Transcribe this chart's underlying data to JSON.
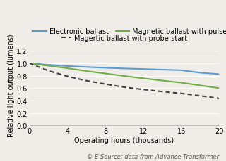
{
  "title": "",
  "xlabel": "Operating hours (thousands)",
  "ylabel": "Relative light output (lumens)",
  "copyright": "© E Source; data from Advance Transformer",
  "xlim": [
    0,
    20
  ],
  "ylim": [
    0.0,
    1.3
  ],
  "xticks": [
    0,
    4,
    8,
    12,
    16,
    20
  ],
  "yticks": [
    0.0,
    0.2,
    0.4,
    0.6,
    0.8,
    1.0,
    1.2
  ],
  "lines": [
    {
      "label": "Electronic ballast",
      "color": "#5b9bd5",
      "style": "solid",
      "x": [
        0,
        2,
        4,
        6,
        8,
        10,
        12,
        14,
        16,
        18,
        20
      ],
      "y": [
        1.0,
        0.975,
        0.955,
        0.94,
        0.927,
        0.916,
        0.907,
        0.897,
        0.888,
        0.848,
        0.825
      ]
    },
    {
      "label": "Magnetic ballast with pulse-start",
      "color": "#70ad47",
      "style": "solid",
      "x": [
        0,
        2,
        4,
        6,
        8,
        10,
        12,
        14,
        16,
        18,
        20
      ],
      "y": [
        1.0,
        0.96,
        0.92,
        0.875,
        0.835,
        0.795,
        0.758,
        0.722,
        0.688,
        0.644,
        0.6
      ]
    },
    {
      "label": "Magertic ballast with probe-start",
      "color": "#404040",
      "style": "dashed",
      "x": [
        0,
        2,
        4,
        6,
        8,
        10,
        12,
        14,
        16,
        18,
        20
      ],
      "y": [
        1.0,
        0.88,
        0.79,
        0.72,
        0.665,
        0.615,
        0.578,
        0.545,
        0.515,
        0.478,
        0.435
      ]
    }
  ],
  "background_color": "#f0ede8",
  "plot_bg_color": "#f0ede8",
  "linewidth": 1.5,
  "fontsize_axis_label": 7,
  "fontsize_tick": 7,
  "fontsize_legend": 7,
  "fontsize_copyright": 6
}
